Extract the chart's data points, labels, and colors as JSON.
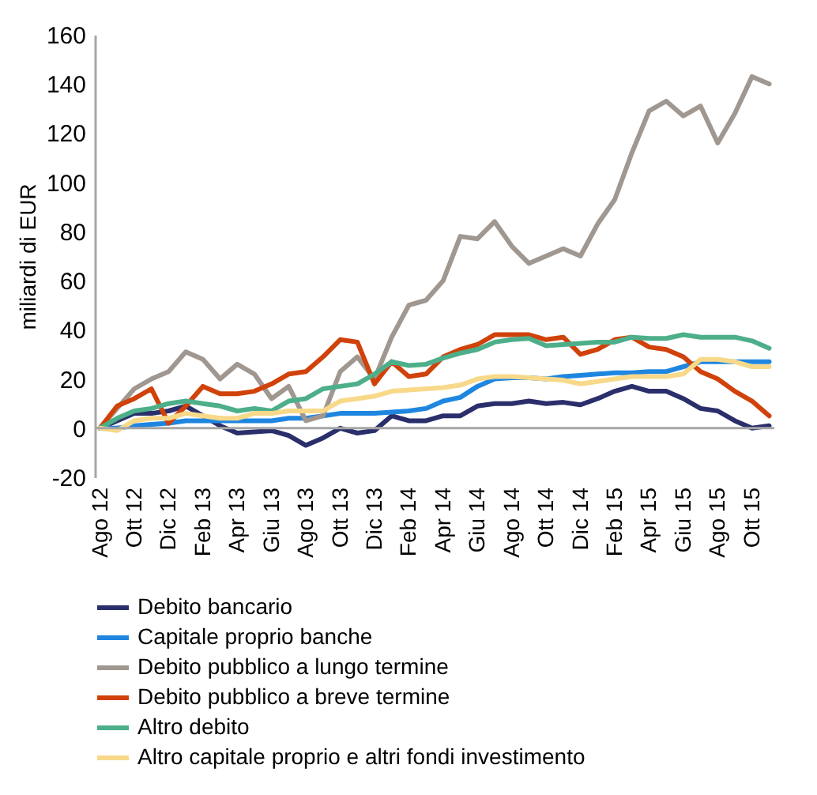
{
  "chart_data": {
    "type": "line",
    "ylabel": "miliardi di EUR",
    "categories": [
      "Ago 12",
      null,
      "Ott 12",
      null,
      "Dic 12",
      null,
      "Feb 13",
      null,
      "Apr 13",
      null,
      "Giu 13",
      null,
      "Ago 13",
      null,
      "Ott 13",
      null,
      "Dic 13",
      null,
      "Feb 14",
      null,
      "Apr 14",
      null,
      "Giu 14",
      null,
      "Ago 14",
      null,
      "Ott 14",
      null,
      "Dic 14",
      null,
      "Feb 15",
      null,
      "Apr 15",
      null,
      "Giu 15",
      null,
      "Ago 15",
      null,
      "Ott 15",
      null
    ],
    "ylim": [
      -20,
      160
    ],
    "yticks": [
      -20,
      0,
      20,
      40,
      60,
      80,
      100,
      120,
      140,
      160
    ],
    "grid": false,
    "legend": "bottom",
    "marker": "none",
    "line_style": "solid",
    "ref_lines": [
      {
        "axis": "y",
        "value": 0,
        "color": "#a6a6a6"
      }
    ],
    "series": [
      {
        "name": "Debito bancario",
        "color": "#2a2f6b",
        "values": [
          0,
          3,
          6,
          6,
          7,
          9,
          5,
          1,
          -2,
          -1.5,
          -1,
          -3,
          -7,
          -4,
          0,
          -2,
          -1,
          5,
          3,
          3,
          5,
          5,
          9,
          10,
          10,
          11,
          10,
          10.5,
          9.5,
          12,
          15,
          17,
          15,
          15,
          12,
          8,
          7,
          3,
          0,
          1
        ]
      },
      {
        "name": "Capitale proprio banche",
        "color": "#1f86e0",
        "values": [
          0,
          0,
          1,
          1.5,
          2,
          3,
          3,
          3,
          3,
          3,
          3,
          4,
          4,
          5,
          6,
          6,
          6,
          6.5,
          7,
          8,
          11,
          12.5,
          17,
          20,
          20.5,
          20.5,
          20,
          21,
          21.5,
          22,
          22.5,
          22.5,
          23,
          23,
          25,
          27,
          27,
          27,
          27,
          27
        ]
      },
      {
        "name": "Debito pubblico a lungo termine",
        "color": "#a09890",
        "values": [
          0,
          8,
          16,
          20,
          23,
          31,
          28,
          20,
          26,
          22,
          12,
          17,
          3,
          5,
          23,
          29,
          20,
          37,
          50,
          52,
          60,
          78,
          77,
          84,
          74,
          67,
          70,
          73,
          70,
          83,
          93,
          112,
          129,
          133,
          127,
          131,
          116,
          128,
          143,
          140
        ]
      },
      {
        "name": "Debito pubblico a breve termine",
        "color": "#d0420a",
        "values": [
          0,
          9,
          12,
          16,
          2,
          9,
          17,
          14,
          14,
          15,
          18,
          22,
          23,
          29,
          36,
          35,
          18,
          27,
          21,
          22,
          29,
          32,
          34,
          38,
          38,
          38,
          36,
          37,
          30,
          32,
          36,
          37,
          33,
          32,
          29,
          23,
          20,
          15,
          11,
          5
        ]
      },
      {
        "name": "Altro debito",
        "color": "#4daf8a",
        "values": [
          0,
          4,
          7,
          8,
          10,
          11,
          10,
          9,
          7,
          8,
          7,
          11,
          12,
          16,
          17,
          18,
          22,
          27,
          25.5,
          26,
          28.5,
          30.5,
          32,
          35,
          36,
          36.5,
          33.5,
          34,
          34.5,
          35,
          35,
          37,
          36.5,
          36.5,
          38,
          37,
          37,
          37,
          35.5,
          32.5
        ]
      },
      {
        "name": "Altro capitale proprio e altri fondi investimento",
        "color": "#f8d98a",
        "values": [
          0,
          -1,
          3,
          4,
          4,
          6,
          5,
          4,
          4,
          6,
          6,
          7,
          7,
          7,
          11,
          12,
          13,
          15,
          15.5,
          16,
          16.5,
          17.5,
          20,
          21,
          21,
          20.5,
          20,
          19.5,
          18,
          19,
          20,
          21,
          21,
          21,
          22,
          28,
          28,
          27,
          25,
          25
        ]
      }
    ]
  }
}
